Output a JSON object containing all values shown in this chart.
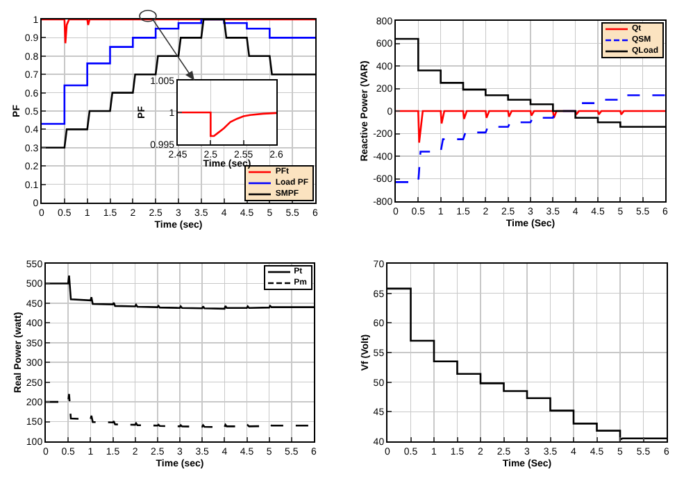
{
  "chart_data": [
    {
      "type": "line",
      "xlabel": "Time (sec)",
      "ylabel": "PF",
      "xlim": [
        0,
        6
      ],
      "ylim": [
        0,
        1
      ],
      "xticks": [
        0,
        0.5,
        1,
        1.5,
        2,
        2.5,
        3,
        3.5,
        4,
        4.5,
        5,
        5.5,
        6
      ],
      "yticks": [
        0,
        0.1,
        0.2,
        0.3,
        0.4,
        0.5,
        0.6,
        0.7,
        0.8,
        0.9,
        1
      ],
      "grid": true,
      "legend": "bottom right",
      "line_style": "solid",
      "series": [
        {
          "name": "PFt",
          "color": "#ff0000",
          "x": [
            0,
            0.5,
            0.52,
            0.55,
            0.6,
            1,
            1.02,
            1.05,
            6
          ],
          "values": [
            1,
            1,
            0.87,
            0.97,
            1,
            1,
            0.97,
            1,
            1
          ]
        },
        {
          "name": "Load PF",
          "color": "#0000ff",
          "x": [
            0,
            0.5,
            0.5,
            1,
            1,
            1.5,
            1.5,
            2,
            2,
            2.5,
            2.5,
            3,
            3,
            3.5,
            3.5,
            4,
            4,
            4.5,
            4.5,
            5,
            5,
            6
          ],
          "values": [
            0.43,
            0.43,
            0.64,
            0.64,
            0.76,
            0.76,
            0.85,
            0.85,
            0.9,
            0.9,
            0.95,
            0.95,
            0.98,
            0.98,
            1,
            1,
            0.98,
            0.98,
            0.95,
            0.95,
            0.9,
            0.9
          ]
        },
        {
          "name": "SMPF",
          "color": "#000000",
          "x": [
            0,
            0.5,
            0.55,
            1,
            1.05,
            1.5,
            1.55,
            2,
            2.05,
            2.5,
            2.55,
            3,
            3.05,
            3.5,
            3.55,
            4,
            4.05,
            4.5,
            4.55,
            5,
            5.05,
            6
          ],
          "values": [
            0.3,
            0.3,
            0.4,
            0.4,
            0.5,
            0.5,
            0.6,
            0.6,
            0.7,
            0.7,
            0.8,
            0.8,
            0.9,
            0.9,
            1,
            1,
            0.9,
            0.9,
            0.8,
            0.8,
            0.7,
            0.7
          ]
        }
      ]
    },
    {
      "type": "line",
      "xlabel": "Time (sec)",
      "ylabel": "PF",
      "xlim": [
        2.45,
        2.6
      ],
      "ylim": [
        0.995,
        1.005
      ],
      "xticks": [
        2.45,
        2.5,
        2.55,
        2.6
      ],
      "yticks": [
        0.995,
        1,
        1.005
      ],
      "grid": true,
      "series": [
        {
          "color": "#ff0000",
          "x": [
            2.45,
            2.5,
            2.5,
            2.505,
            2.51,
            2.52,
            2.525,
            2.53,
            2.54,
            2.55,
            2.56,
            2.58,
            2.6
          ],
          "values": [
            1,
            1,
            0.9963,
            0.9963,
            0.9967,
            0.9975,
            0.998,
            0.9985,
            0.999,
            0.9994,
            0.9996,
            0.9998,
            0.9999
          ]
        }
      ]
    },
    {
      "type": "line",
      "xlabel": "Time (Sec)",
      "ylabel": "Reactive Power (VAR)",
      "xlim": [
        0,
        6
      ],
      "ylim": [
        -800,
        800
      ],
      "xticks": [
        0,
        0.5,
        1,
        1.5,
        2,
        2.5,
        3,
        3.5,
        4,
        4.5,
        5,
        5.5,
        6
      ],
      "yticks": [
        -800,
        -600,
        -400,
        -200,
        0,
        200,
        400,
        600,
        800
      ],
      "grid": true,
      "legend": "top right",
      "series": [
        {
          "name": "Qt",
          "color": "#ff0000",
          "line_style": "solid",
          "x": [
            0,
            0.5,
            0.52,
            0.6,
            1,
            1.02,
            1.08,
            1.5,
            1.52,
            1.58,
            2,
            2.02,
            2.08,
            2.5,
            2.52,
            2.58,
            3,
            3.02,
            3.08,
            3.5,
            3.52,
            3.58,
            4,
            4.02,
            4.08,
            4.5,
            4.52,
            4.58,
            5,
            5.02,
            5.08,
            6
          ],
          "values": [
            0,
            0,
            -280,
            0,
            0,
            -110,
            0,
            0,
            -70,
            0,
            0,
            -60,
            0,
            0,
            -50,
            0,
            0,
            -40,
            0,
            0,
            -60,
            0,
            0,
            -30,
            0,
            0,
            -30,
            0,
            0,
            -30,
            0,
            0
          ]
        },
        {
          "name": "QSM",
          "color": "#0000ff",
          "line_style": "dashed",
          "x": [
            0,
            0.5,
            0.55,
            1,
            1.05,
            1.5,
            1.55,
            2,
            2.05,
            2.5,
            2.55,
            3,
            3.05,
            3.5,
            3.55,
            4,
            4.05,
            4.5,
            4.55,
            5,
            5.05,
            6
          ],
          "values": [
            -630,
            -630,
            -360,
            -360,
            -250,
            -250,
            -190,
            -190,
            -140,
            -140,
            -100,
            -100,
            -60,
            -60,
            0,
            0,
            70,
            70,
            100,
            100,
            140,
            140
          ]
        },
        {
          "name": "QLoad",
          "color": "#000000",
          "line_style": "solid",
          "x": [
            0,
            0.5,
            0.5,
            1,
            1,
            1.5,
            1.5,
            2,
            2,
            2.5,
            2.5,
            3,
            3,
            3.5,
            3.5,
            4,
            4,
            4.5,
            4.5,
            5,
            5,
            6
          ],
          "values": [
            640,
            640,
            360,
            360,
            250,
            250,
            190,
            190,
            140,
            140,
            100,
            100,
            60,
            60,
            0,
            0,
            -60,
            -60,
            -100,
            -100,
            -140,
            -140
          ]
        }
      ]
    },
    {
      "type": "line",
      "xlabel": "Time (sec)",
      "ylabel": "Real Power (watt)",
      "xlim": [
        0,
        6
      ],
      "ylim": [
        100,
        550
      ],
      "xticks": [
        0,
        0.5,
        1,
        1.5,
        2,
        2.5,
        3,
        3.5,
        4,
        4.5,
        5,
        5.5,
        6
      ],
      "yticks": [
        100,
        150,
        200,
        250,
        300,
        350,
        400,
        450,
        500,
        550
      ],
      "grid": true,
      "legend": "top right",
      "series": [
        {
          "name": "Pt",
          "color": "#000000",
          "line_style": "solid",
          "x": [
            0,
            0.5,
            0.52,
            0.56,
            1,
            1.02,
            1.05,
            1.5,
            1.52,
            1.55,
            2,
            2.02,
            2.05,
            2.5,
            2.52,
            2.55,
            3,
            3.02,
            3.05,
            3.5,
            3.52,
            3.55,
            4,
            4.02,
            4.05,
            4.5,
            4.52,
            4.55,
            5,
            5.02,
            5.05,
            6
          ],
          "values": [
            500,
            500,
            520,
            460,
            457,
            465,
            448,
            447,
            451,
            443,
            442,
            446,
            441,
            440,
            443,
            439,
            438,
            442,
            438,
            437,
            442,
            437,
            436,
            443,
            438,
            438,
            442,
            438,
            439,
            443,
            440,
            440
          ]
        },
        {
          "name": "Pm",
          "color": "#000000",
          "line_style": "dashed",
          "x": [
            0,
            0.5,
            0.52,
            0.56,
            1,
            1.02,
            1.05,
            1.5,
            1.52,
            1.55,
            2,
            2.02,
            2.05,
            2.5,
            2.52,
            2.55,
            3,
            3.02,
            3.05,
            3.5,
            3.52,
            3.55,
            4,
            4.02,
            4.05,
            4.5,
            4.52,
            4.55,
            5,
            5.02,
            5.05,
            6
          ],
          "values": [
            200,
            200,
            220,
            158,
            156,
            165,
            149,
            148,
            151,
            143,
            142,
            146,
            141,
            140,
            142,
            139,
            138,
            141,
            138,
            137,
            141,
            137,
            136,
            142,
            138,
            138,
            141,
            138,
            139,
            142,
            140,
            140
          ]
        }
      ]
    },
    {
      "type": "line",
      "xlabel": "Time (Sec)",
      "ylabel": "Vf (Volt)",
      "xlim": [
        0,
        6
      ],
      "ylim": [
        40,
        70
      ],
      "xticks": [
        0,
        0.5,
        1,
        1.5,
        2,
        2.5,
        3,
        3.5,
        4,
        4.5,
        5,
        5.5,
        6
      ],
      "yticks": [
        40,
        45,
        50,
        55,
        60,
        65,
        70
      ],
      "grid": true,
      "line_style": "solid",
      "series": [
        {
          "color": "#000000",
          "x": [
            0,
            0.5,
            0.5,
            1,
            1,
            1.5,
            1.5,
            2,
            2,
            2.5,
            2.5,
            3,
            3,
            3.5,
            3.5,
            4,
            4,
            4.5,
            4.5,
            5,
            5,
            5.05,
            6
          ],
          "values": [
            65.8,
            65.8,
            57,
            57,
            53.5,
            53.5,
            51.4,
            51.4,
            49.8,
            49.8,
            48.5,
            48.5,
            47.3,
            47.3,
            45.2,
            45.2,
            43,
            43,
            41.8,
            41.8,
            40.3,
            40.5,
            40.5
          ]
        }
      ]
    }
  ]
}
